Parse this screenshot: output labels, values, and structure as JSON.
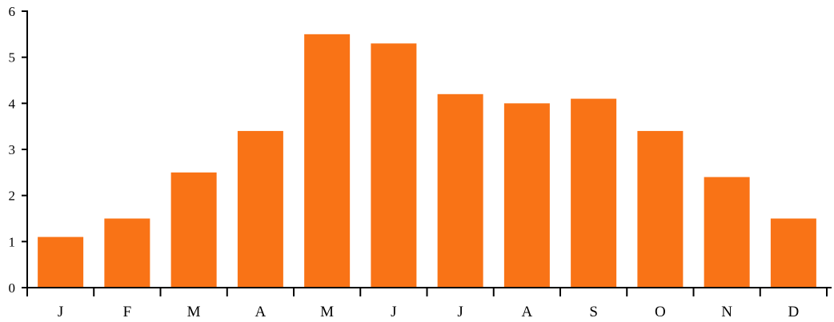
{
  "chart_data": {
    "type": "bar",
    "title": "",
    "xlabel": "",
    "ylabel": "",
    "categories": [
      "J",
      "F",
      "M",
      "A",
      "M",
      "J",
      "J",
      "A",
      "S",
      "O",
      "N",
      "D"
    ],
    "values": [
      1.1,
      1.5,
      2.5,
      3.4,
      5.5,
      5.3,
      4.2,
      4.0,
      4.1,
      3.4,
      2.4,
      1.5
    ],
    "ylim": [
      0,
      6
    ],
    "yticks": [
      "0",
      "1",
      "2",
      "3",
      "4",
      "5",
      "6"
    ],
    "grid": false,
    "legend": "none",
    "bar_color": "#f97316"
  }
}
